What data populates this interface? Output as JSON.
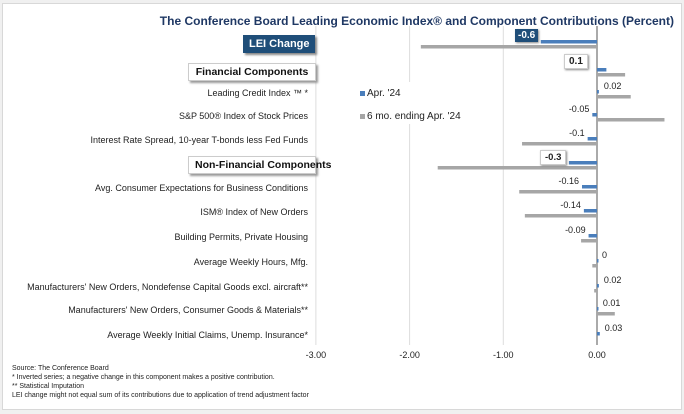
{
  "chart_data": {
    "type": "bar",
    "orientation": "horizontal",
    "title": "The Conference Board Leading Economic Index® and Component Contributions (Percent)",
    "categories": [
      "LEI Change",
      "Financial Components",
      "Leading Credit Index ™ *",
      "S&P 500® Index of Stock Prices",
      "Interest Rate Spread, 10-year T-bonds less Fed Funds",
      "Non-Financial Components",
      "Avg. Consumer Expectations for Business Conditions",
      "ISM® Index of New Orders",
      "Building Permits, Private Housing",
      "Average Weekly Hours, Mfg.",
      "Manufacturers' New Orders, Nondefense Capital Goods excl. aircraft**",
      "Manufacturers' New Orders, Consumer Goods & Materials**",
      "Average Weekly Initial Claims, Unemp. Insurance*"
    ],
    "series": [
      {
        "name": "Apr. '24",
        "color": "#4a7ebb",
        "values": [
          -0.6,
          0.1,
          0.02,
          -0.05,
          -0.1,
          -0.3,
          -0.16,
          -0.14,
          -0.09,
          0,
          0.02,
          0.01,
          0.03
        ],
        "labels": [
          "-0.6",
          "0.1",
          "0.02",
          "-0.05",
          "-0.1",
          "-0.3",
          "-0.16",
          "-0.14",
          "-0.09",
          "0",
          "0.02",
          "0.01",
          "0.03"
        ]
      },
      {
        "name": "6 mo. ending Apr. '24",
        "color": "#a6a6a6",
        "values": [
          -1.88,
          0.3,
          0.36,
          0.72,
          -0.8,
          -1.7,
          -0.83,
          -0.77,
          -0.17,
          -0.05,
          -0.03,
          0.19,
          0.0
        ]
      }
    ],
    "xlim": [
      -3,
      0.72
    ],
    "xticks": [
      "-3.00",
      "-2.00",
      "-1.00",
      "0.00"
    ],
    "xtick_values": [
      -3,
      -2,
      -1,
      0
    ],
    "grid": true,
    "legend": "center"
  },
  "footnotes": [
    "Source: The Conference Board",
    "*  Inverted series; a negative change in this component makes a positive contribution.",
    "**  Statistical Imputation",
    "LEI change might not equal sum of its contributions due to application of trend adjustment factor"
  ]
}
